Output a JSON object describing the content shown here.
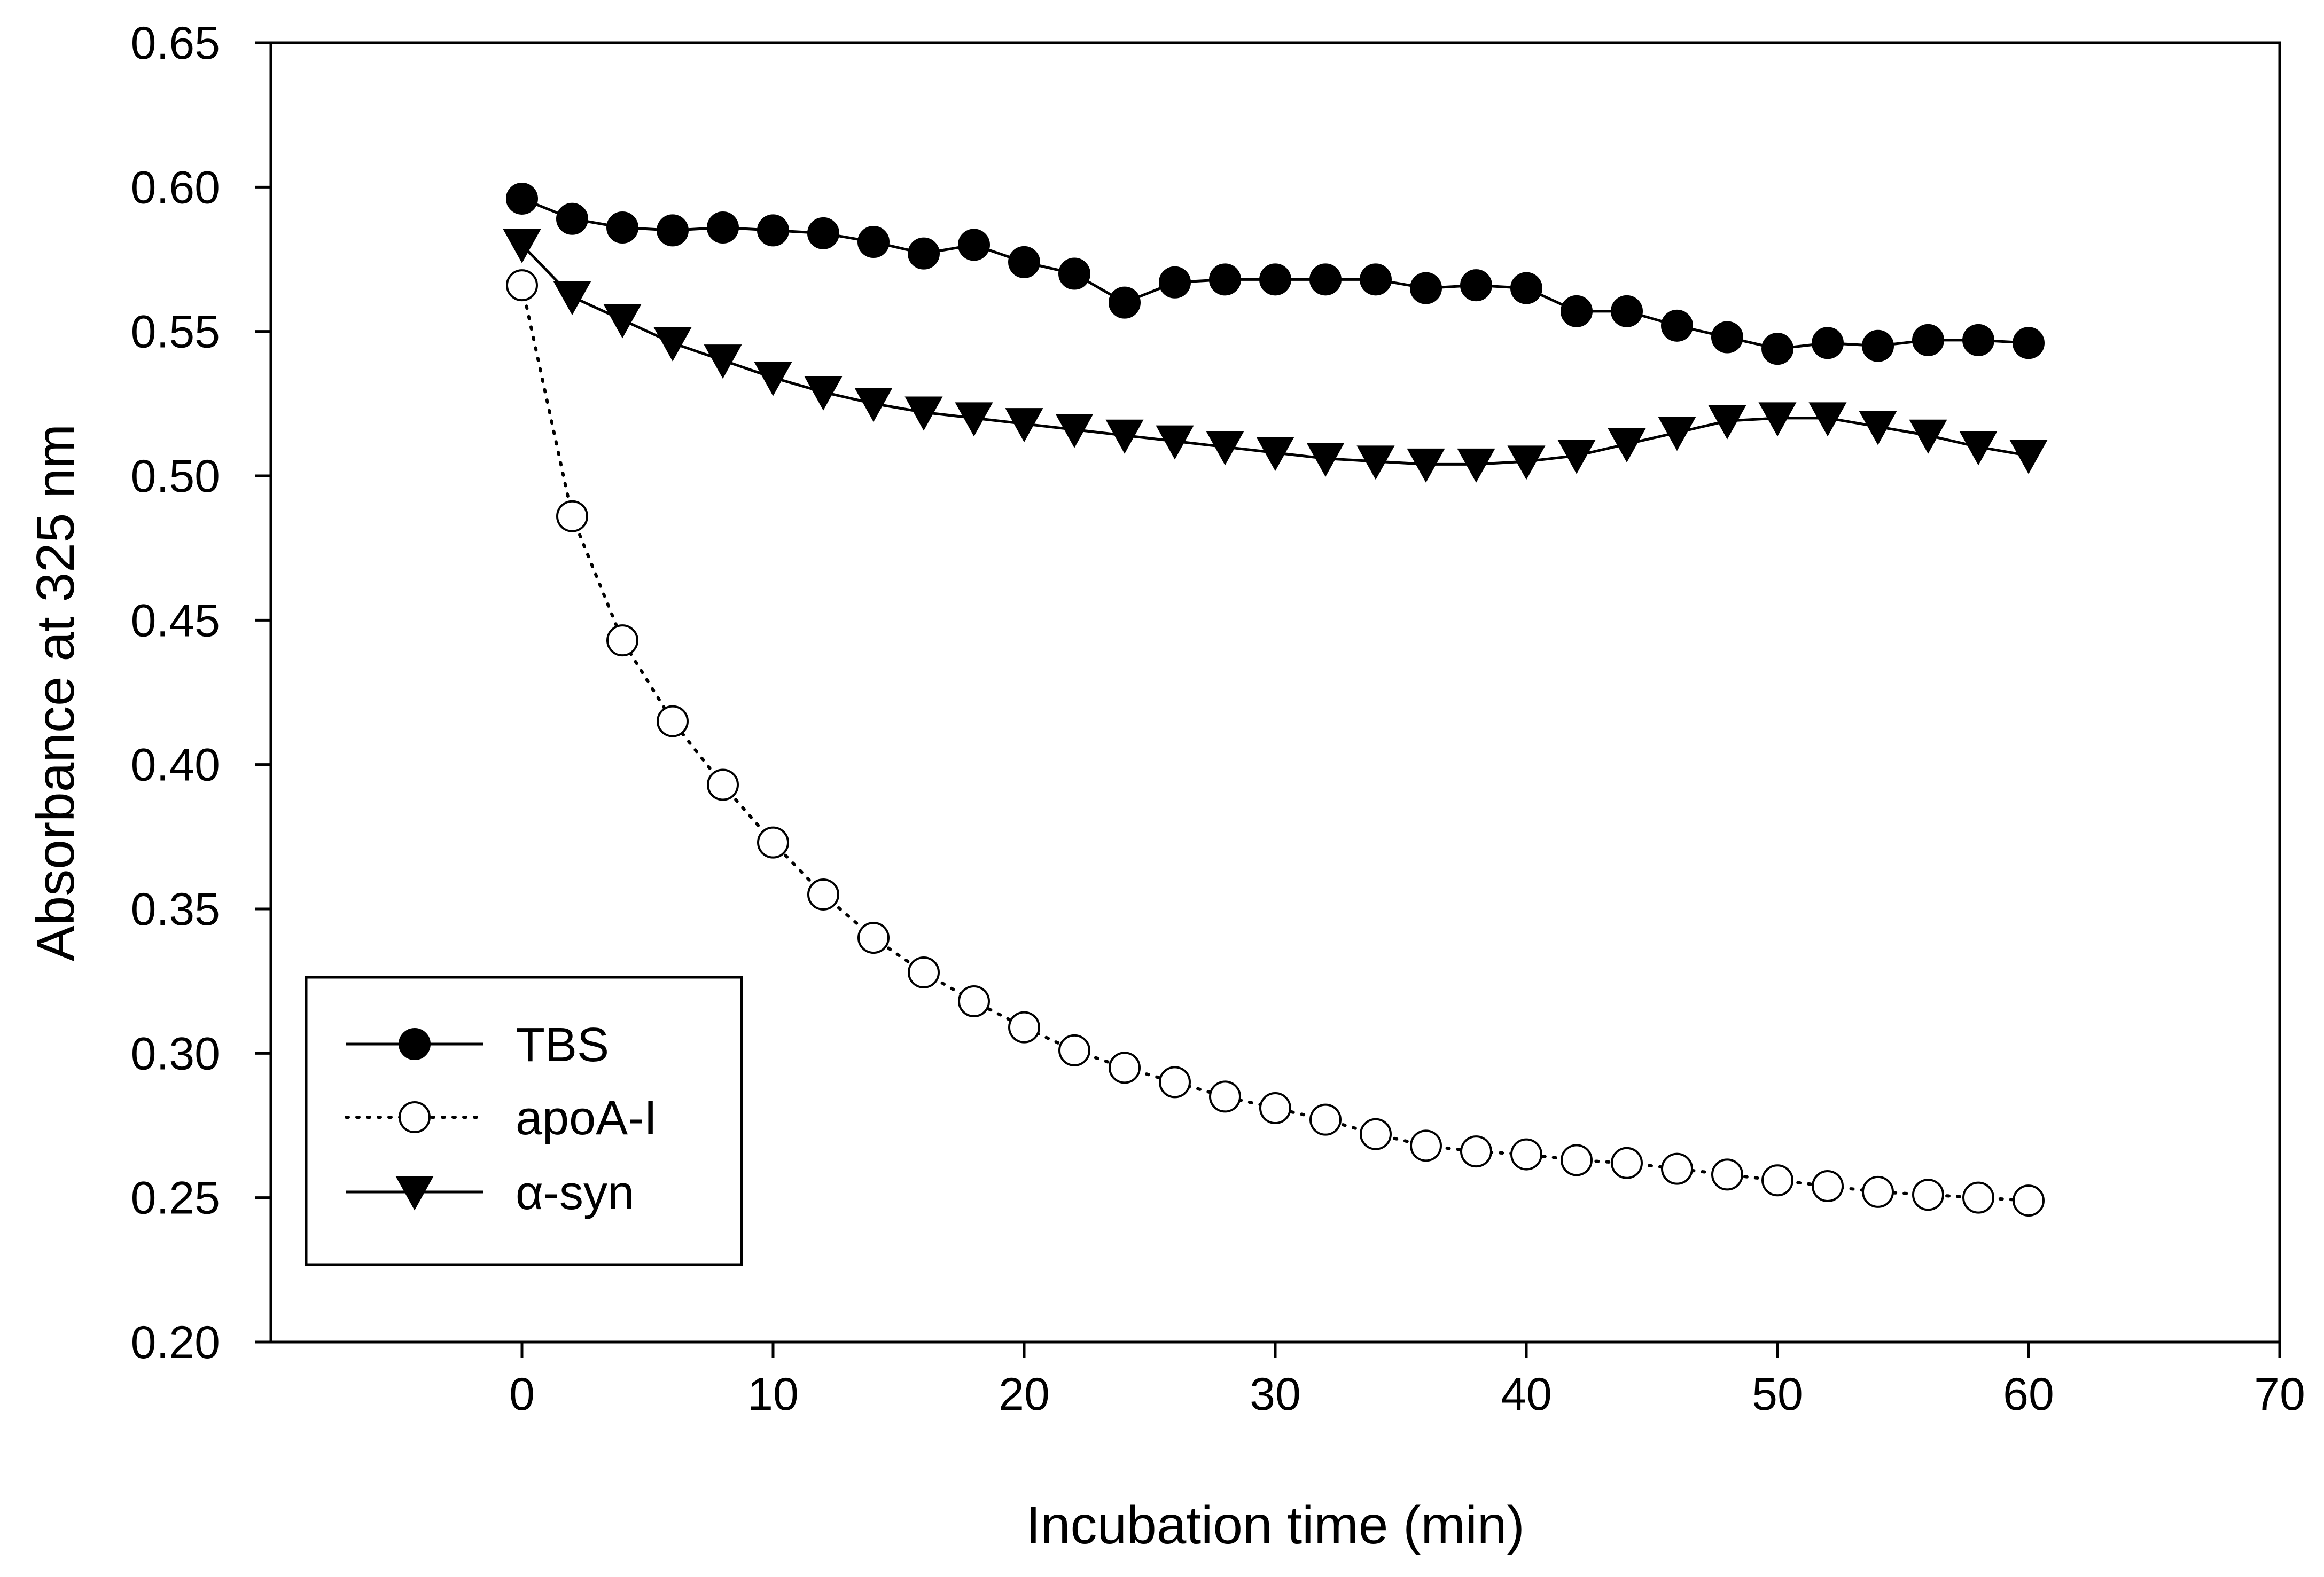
{
  "chart_data": {
    "type": "line",
    "title": "",
    "xlabel": "Incubation time (min)",
    "ylabel": "Absorbance at 325 nm",
    "xlim": [
      -10,
      70
    ],
    "ylim": [
      0.2,
      0.65
    ],
    "x_ticks": [
      0,
      10,
      20,
      30,
      40,
      50,
      60,
      70
    ],
    "x_tick_labels": [
      "0",
      "10",
      "20",
      "30",
      "40",
      "50",
      "60",
      "70"
    ],
    "y_ticks": [
      0.2,
      0.25,
      0.3,
      0.35,
      0.4,
      0.45,
      0.5,
      0.55,
      0.6,
      0.65
    ],
    "y_tick_labels": [
      "0.20",
      "0.25",
      "0.30",
      "0.35",
      "0.40",
      "0.45",
      "0.50",
      "0.55",
      "0.60",
      "0.65"
    ],
    "grid": false,
    "legend_position": "bottom-left",
    "x": [
      0,
      2,
      4,
      6,
      8,
      10,
      12,
      14,
      16,
      18,
      20,
      22,
      24,
      26,
      28,
      30,
      32,
      34,
      36,
      38,
      40,
      42,
      44,
      46,
      48,
      50,
      52,
      54,
      56,
      58,
      60
    ],
    "series": [
      {
        "name": "TBS",
        "marker": "filled-circle",
        "line": "solid",
        "values": [
          0.596,
          0.589,
          0.586,
          0.585,
          0.586,
          0.585,
          0.584,
          0.581,
          0.577,
          0.58,
          0.574,
          0.57,
          0.56,
          0.567,
          0.568,
          0.568,
          0.568,
          0.568,
          0.565,
          0.566,
          0.565,
          0.557,
          0.557,
          0.552,
          0.548,
          0.544,
          0.546,
          0.545,
          0.547,
          0.547,
          0.546
        ]
      },
      {
        "name": "apoA-I",
        "marker": "open-circle",
        "line": "dotted",
        "values": [
          0.566,
          0.486,
          0.443,
          0.415,
          0.393,
          0.373,
          0.355,
          0.34,
          0.328,
          0.318,
          0.309,
          0.301,
          0.295,
          0.29,
          0.285,
          0.281,
          0.277,
          0.272,
          0.268,
          0.266,
          0.265,
          0.263,
          0.262,
          0.26,
          0.258,
          0.256,
          0.254,
          0.252,
          0.251,
          0.25,
          0.249
        ]
      },
      {
        "name": "α-syn",
        "marker": "filled-triangle-down",
        "line": "solid",
        "values": [
          0.58,
          0.562,
          0.554,
          0.546,
          0.54,
          0.534,
          0.529,
          0.525,
          0.522,
          0.52,
          0.518,
          0.516,
          0.514,
          0.512,
          0.51,
          0.508,
          0.506,
          0.505,
          0.504,
          0.504,
          0.505,
          0.507,
          0.511,
          0.515,
          0.519,
          0.52,
          0.52,
          0.517,
          0.514,
          0.51,
          0.507
        ]
      }
    ]
  }
}
